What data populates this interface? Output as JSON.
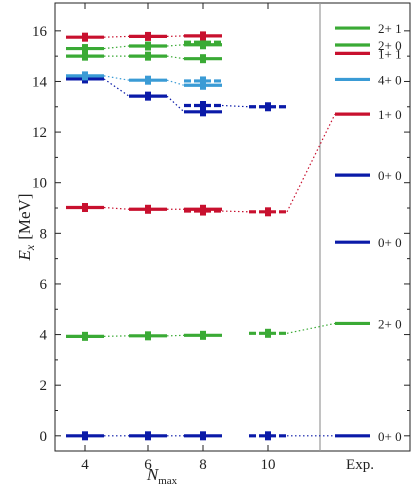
{
  "chart_data": {
    "type": "level-scheme",
    "xlabel": {
      "main": "N",
      "sub": "max"
    },
    "ylabel": {
      "main": "E",
      "sub": "x",
      "unit": "[MeV]"
    },
    "ylim": [
      -0.6,
      17.1
    ],
    "x_categories": [
      "4",
      "6",
      "8",
      "10",
      "Exp."
    ],
    "y_ticks": [
      "0",
      "2",
      "4",
      "6",
      "8",
      "10",
      "12",
      "14",
      "16"
    ],
    "colors": {
      "red": "#c8102e",
      "green": "#3aaa35",
      "lightblue": "#3a9bd5",
      "darkblue": "#0a1aa8"
    },
    "series": [
      {
        "color": "darkblue",
        "style": "solid",
        "points": [
          [
            4,
            0.0
          ],
          [
            6,
            0.0
          ],
          [
            8,
            0.0
          ]
        ]
      },
      {
        "color": "darkblue",
        "style": "dashed",
        "points": [
          [
            10,
            0.0
          ]
        ]
      },
      {
        "color": "green",
        "style": "solid",
        "points": [
          [
            4,
            3.93
          ],
          [
            6,
            3.95
          ],
          [
            8,
            3.97
          ]
        ]
      },
      {
        "color": "green",
        "style": "dashed",
        "points": [
          [
            10,
            4.05
          ]
        ]
      },
      {
        "color": "red",
        "style": "solid",
        "points": [
          [
            4,
            9.02
          ],
          [
            6,
            8.95
          ],
          [
            8,
            8.95
          ]
        ]
      },
      {
        "color": "red",
        "style": "dashed",
        "points": [
          [
            8,
            8.88
          ],
          [
            10,
            8.85
          ]
        ]
      },
      {
        "color": "darkblue",
        "style": "solid",
        "points": [
          [
            4,
            14.1
          ],
          [
            6,
            13.42
          ],
          [
            8,
            12.8
          ]
        ]
      },
      {
        "color": "darkblue",
        "style": "dashed",
        "points": [
          [
            8,
            13.05
          ],
          [
            10,
            13.0
          ]
        ]
      },
      {
        "color": "lightblue",
        "style": "solid",
        "points": [
          [
            4,
            14.22
          ],
          [
            6,
            14.05
          ],
          [
            8,
            13.85
          ]
        ]
      },
      {
        "color": "lightblue",
        "style": "dashed",
        "points": [
          [
            8,
            14.02
          ]
        ]
      },
      {
        "color": "green",
        "style": "solid",
        "points": [
          [
            4,
            15.0
          ],
          [
            6,
            15.0
          ],
          [
            8,
            14.9
          ]
        ]
      },
      {
        "color": "green",
        "style": "solid",
        "points": [
          [
            4,
            15.3
          ],
          [
            6,
            15.4
          ],
          [
            8,
            15.45
          ]
        ]
      },
      {
        "color": "green",
        "style": "dashed",
        "points": [
          [
            8,
            15.55
          ]
        ]
      },
      {
        "color": "red",
        "style": "solid",
        "points": [
          [
            4,
            15.75
          ],
          [
            6,
            15.78
          ],
          [
            8,
            15.8
          ]
        ]
      }
    ],
    "experiment": [
      {
        "energy": 0.0,
        "label": "0+ 0",
        "color": "darkblue",
        "connect_from": 0.0
      },
      {
        "energy": 4.44,
        "label": "2+ 0",
        "color": "green",
        "connect_from": 4.05
      },
      {
        "energy": 7.65,
        "label": "0+ 0",
        "color": "darkblue"
      },
      {
        "energy": 10.3,
        "label": "0+ 0",
        "color": "darkblue"
      },
      {
        "energy": 12.71,
        "label": "1+ 0",
        "color": "red",
        "connect_from": 8.85
      },
      {
        "energy": 14.08,
        "label": "4+ 0",
        "color": "lightblue"
      },
      {
        "energy": 15.11,
        "label": "1+ 1",
        "color": "red"
      },
      {
        "energy": 15.44,
        "label": "2+ 0",
        "color": "green"
      },
      {
        "energy": 16.11,
        "label": "2+ 1",
        "color": "green"
      }
    ]
  }
}
